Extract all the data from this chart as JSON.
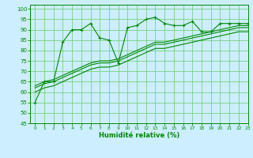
{
  "xlabel": "Humidité relative (%)",
  "background_color": "#cceeff",
  "grid_color": "#66cc66",
  "line_color": "#008800",
  "xlim": [
    -0.5,
    23
  ],
  "ylim": [
    45,
    102
  ],
  "yticks": [
    45,
    50,
    55,
    60,
    65,
    70,
    75,
    80,
    85,
    90,
    95,
    100
  ],
  "xticks": [
    0,
    1,
    2,
    3,
    4,
    5,
    6,
    7,
    8,
    9,
    10,
    11,
    12,
    13,
    14,
    15,
    16,
    17,
    18,
    19,
    20,
    21,
    22,
    23
  ],
  "series_marker": {
    "x": [
      0,
      1,
      2,
      3,
      4,
      5,
      6,
      7,
      8,
      9,
      10,
      11,
      12,
      13,
      14,
      15,
      16,
      17,
      18,
      19,
      20,
      21,
      22,
      23
    ],
    "y": [
      55,
      65,
      65,
      84,
      90,
      90,
      93,
      86,
      85,
      74,
      91,
      92,
      95,
      96,
      93,
      92,
      92,
      94,
      89,
      89,
      93,
      93,
      93,
      93
    ]
  },
  "series_smooth": [
    [
      63,
      65,
      66,
      68,
      70,
      72,
      74,
      75,
      75,
      76,
      78,
      80,
      82,
      84,
      84,
      85,
      86,
      87,
      88,
      89,
      90,
      91,
      92,
      92
    ],
    [
      62,
      64,
      65,
      67,
      69,
      71,
      73,
      74,
      74,
      75,
      77,
      79,
      81,
      83,
      83,
      84,
      85,
      86,
      87,
      88,
      89,
      90,
      91,
      91
    ],
    [
      60,
      62,
      63,
      65,
      67,
      69,
      71,
      72,
      72,
      73,
      75,
      77,
      79,
      81,
      81,
      82,
      83,
      84,
      85,
      86,
      87,
      88,
      89,
      89
    ]
  ]
}
